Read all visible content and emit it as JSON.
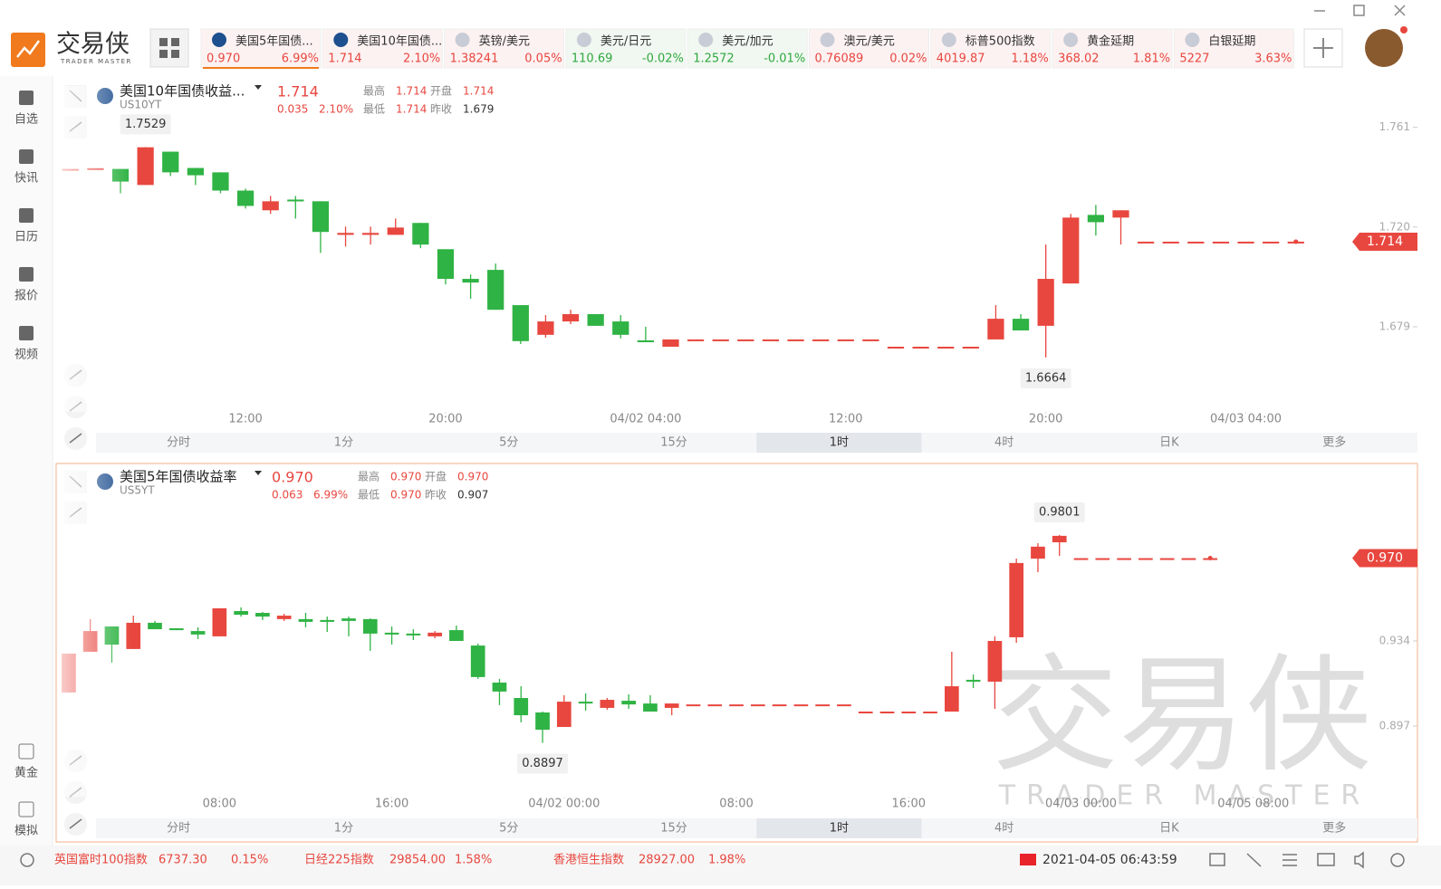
{
  "app": {
    "logo_title": "交易侠",
    "logo_subtitle": "TRADER MASTER"
  },
  "tickers": [
    {
      "name": "美国5年国债...",
      "price": "0.970",
      "change": "6.99%",
      "color": "#e8473f"
    },
    {
      "name": "美国10年国债...",
      "price": "1.714",
      "change": "2.10%",
      "color": "#e8473f"
    },
    {
      "name": "英镑/美元",
      "price": "1.38241",
      "change": "0.05%",
      "color": "#e8473f"
    },
    {
      "name": "美元/日元",
      "price": "110.69",
      "change": "-0.02%",
      "color": "#2fa83f"
    },
    {
      "name": "美元/加元",
      "price": "1.2572",
      "change": "-0.01%",
      "color": "#2fa83f"
    },
    {
      "name": "澳元/美元",
      "price": "0.76089",
      "change": "0.02%",
      "color": "#e8473f"
    },
    {
      "name": "标普500指数",
      "price": "4019.87",
      "change": "1.18%",
      "color": "#e8473f"
    },
    {
      "name": "黄金延期",
      "price": "368.02",
      "change": "1.81%",
      "color": "#e8473f"
    },
    {
      "name": "白银延期",
      "price": "5227",
      "change": "3.63%",
      "color": "#e8473f"
    }
  ],
  "sidebar": {
    "top": [
      "自选",
      "快讯",
      "日历",
      "报价",
      "视频"
    ],
    "bottom": [
      "黄金",
      "模拟"
    ]
  },
  "panels": [
    {
      "name": "美国10年国债收益...",
      "code": "US10YT",
      "price": "1.714",
      "change": "0.035",
      "change_pct": "2.10%",
      "stats": [
        {
          "label": "最高",
          "value": "1.714"
        },
        {
          "label": "开盘",
          "value": "1.714"
        },
        {
          "label": "最低",
          "value": "1.714"
        },
        {
          "label": "昨收",
          "value": "1.679"
        }
      ],
      "timeframes": [
        "分时",
        "1分",
        "5分",
        "15分",
        "1时",
        "4时",
        "日K",
        "更多"
      ],
      "selected_timeframe": 4,
      "chart": {
        "type": "candlestick",
        "up_color": "#e8473f",
        "down_color": "#2fb344",
        "xlim": [
          -0.5,
          51
        ],
        "ylim": [
          1.644,
          1.778
        ],
        "xticks": [
          {
            "value": 7,
            "label": "12:00"
          },
          {
            "value": 15,
            "label": "20:00"
          },
          {
            "value": 23,
            "label": "04/02 04:00"
          },
          {
            "value": 31,
            "label": "12:00"
          },
          {
            "value": 39,
            "label": "20:00"
          },
          {
            "value": 47,
            "label": "04/03 04:00"
          }
        ],
        "yticks": [
          1.761,
          {
            "value": 1.72,
            "label": "1.720"
          },
          1.679
        ],
        "ohlc": [
          [
            1.7439,
            1.7439,
            1.7439,
            1.7439
          ],
          [
            1.7442,
            1.7442,
            1.7442,
            1.7442
          ],
          [
            1.7439,
            1.7439,
            1.7339,
            1.7387
          ],
          [
            1.7373,
            1.7529,
            1.7373,
            1.7528
          ],
          [
            1.751,
            1.751,
            1.741,
            1.7425
          ],
          [
            1.7443,
            1.7443,
            1.7373,
            1.7413
          ],
          [
            1.7425,
            1.7425,
            1.7339,
            1.735
          ],
          [
            1.735,
            1.7358,
            1.7276,
            1.7287
          ],
          [
            1.7269,
            1.7328,
            1.7254,
            1.7306
          ],
          [
            1.7313,
            1.7328,
            1.7235,
            1.7306
          ],
          [
            1.7306,
            1.7306,
            1.7094,
            1.718
          ],
          [
            1.7168,
            1.7202,
            1.712,
            1.7176
          ],
          [
            1.7168,
            1.7202,
            1.7128,
            1.7176
          ],
          [
            1.7168,
            1.7235,
            1.7168,
            1.7198
          ],
          [
            1.7217,
            1.7217,
            1.7113,
            1.7128
          ],
          [
            1.7109,
            1.7109,
            1.6964,
            1.6987
          ],
          [
            1.6987,
            1.7005,
            1.6905,
            1.6972
          ],
          [
            1.7024,
            1.705,
            1.686,
            1.686
          ],
          [
            1.6879,
            1.6879,
            1.6719,
            1.6731
          ],
          [
            1.6757,
            1.6838,
            1.6745,
            1.6812
          ],
          [
            1.6812,
            1.686,
            1.6801,
            1.6842
          ],
          [
            1.6842,
            1.6842,
            1.6794,
            1.6794
          ],
          [
            1.6812,
            1.6838,
            1.6742,
            1.6757
          ],
          [
            1.6734,
            1.679,
            1.6727,
            1.6727
          ],
          [
            1.6708,
            1.6738,
            1.6708,
            1.6738
          ],
          [
            1.6738,
            1.6738,
            1.6738,
            1.6738
          ],
          [
            1.6738,
            1.6738,
            1.6738,
            1.6738
          ],
          [
            1.6738,
            1.6738,
            1.6738,
            1.6738
          ],
          [
            1.6738,
            1.6738,
            1.6738,
            1.6738
          ],
          [
            1.6738,
            1.6738,
            1.6738,
            1.6738
          ],
          [
            1.6738,
            1.6738,
            1.6738,
            1.6738
          ],
          [
            1.6738,
            1.6738,
            1.6738,
            1.6738
          ],
          [
            1.6738,
            1.6738,
            1.6738,
            1.6738
          ],
          [
            1.6708,
            1.6708,
            1.6708,
            1.6708
          ],
          [
            1.6708,
            1.6708,
            1.6708,
            1.6708
          ],
          [
            1.6708,
            1.6708,
            1.6708,
            1.6708
          ],
          [
            1.6708,
            1.6708,
            1.6708,
            1.6708
          ],
          [
            1.6738,
            1.6879,
            1.6738,
            1.6823
          ],
          [
            1.6823,
            1.6842,
            1.6775,
            1.6775
          ],
          [
            1.6794,
            1.7128,
            1.6664,
            1.6987
          ],
          [
            1.6968,
            1.7254,
            1.6968,
            1.7239
          ],
          [
            1.725,
            1.7291,
            1.7165,
            1.722
          ],
          [
            1.7239,
            1.7269,
            1.7128,
            1.7269
          ],
          [
            1.714,
            1.714,
            1.714,
            1.714
          ],
          [
            1.714,
            1.714,
            1.714,
            1.714
          ],
          [
            1.714,
            1.714,
            1.714,
            1.714
          ],
          [
            1.714,
            1.714,
            1.714,
            1.714
          ],
          [
            1.714,
            1.714,
            1.714,
            1.714
          ],
          [
            1.714,
            1.714,
            1.714,
            1.714
          ],
          [
            1.714,
            1.714,
            1.714,
            1.714
          ]
        ]
      }
    },
    {
      "name": "美国5年国债收益率",
      "code": "US5YT",
      "price": "0.970",
      "change": "0.063",
      "change_pct": "6.99%",
      "stats": [
        {
          "label": "最高",
          "value": "0.970"
        },
        {
          "label": "开盘",
          "value": "0.970"
        },
        {
          "label": "最低",
          "value": "0.970"
        },
        {
          "label": "昨收",
          "value": "0.907"
        }
      ],
      "timeframes": [
        "分时",
        "1分",
        "5分",
        "15分",
        "1时",
        "4时",
        "日K",
        "更多"
      ],
      "selected_timeframe": 4,
      "chart": {
        "type": "candlestick",
        "up_color": "#e8473f",
        "down_color": "#2fb344",
        "xlim": [
          -0.5,
          59.3
        ],
        "ylim": [
          0.8663,
          1.008
        ],
        "xticks": [
          {
            "value": 7,
            "label": "08:00"
          },
          {
            "value": 15,
            "label": "16:00"
          },
          {
            "value": 23,
            "label": "04/02 00:00"
          },
          {
            "value": 31,
            "label": "08:00"
          },
          {
            "value": 39,
            "label": "16:00"
          },
          {
            "value": 47,
            "label": "04/03 00:00"
          },
          {
            "value": 55,
            "label": "04/05 08:00"
          }
        ],
        "yticks": [
          0.934,
          0.897
        ],
        "ohlc": [
          [
            0.9116,
            0.9285,
            0.9116,
            0.9285
          ],
          [
            0.9293,
            0.9435,
            0.9293,
            0.9383
          ],
          [
            0.9403,
            0.9403,
            0.9246,
            0.9324
          ],
          [
            0.9305,
            0.945,
            0.9305,
            0.9419
          ],
          [
            0.9419,
            0.9427,
            0.9391,
            0.9391
          ],
          [
            0.9395,
            0.9395,
            0.9387,
            0.9387
          ],
          [
            0.9383,
            0.9399,
            0.9348,
            0.9368
          ],
          [
            0.936,
            0.9482,
            0.936,
            0.9482
          ],
          [
            0.947,
            0.9486,
            0.9446,
            0.9454
          ],
          [
            0.9462,
            0.9466,
            0.9431,
            0.9446
          ],
          [
            0.9435,
            0.9458,
            0.9427,
            0.945
          ],
          [
            0.9435,
            0.9462,
            0.9399,
            0.9423
          ],
          [
            0.9431,
            0.9446,
            0.9379,
            0.9423
          ],
          [
            0.9438,
            0.9446,
            0.936,
            0.9427
          ],
          [
            0.9435,
            0.9438,
            0.9297,
            0.9372
          ],
          [
            0.9376,
            0.9403,
            0.9324,
            0.9368
          ],
          [
            0.9372,
            0.9391,
            0.9344,
            0.9364
          ],
          [
            0.936,
            0.9383,
            0.9352,
            0.9376
          ],
          [
            0.9387,
            0.9407,
            0.934,
            0.934
          ],
          [
            0.932,
            0.9328,
            0.9175,
            0.9183
          ],
          [
            0.9159,
            0.9175,
            0.9061,
            0.912
          ],
          [
            0.9092,
            0.9143,
            0.8986,
            0.9017
          ],
          [
            0.9029,
            0.9033,
            0.8897,
            0.8954
          ],
          [
            0.8966,
            0.9104,
            0.8966,
            0.9076
          ],
          [
            0.9076,
            0.9112,
            0.9037,
            0.9068
          ],
          [
            0.9049,
            0.9092,
            0.9041,
            0.9084
          ],
          [
            0.908,
            0.9108,
            0.9045,
            0.9064
          ],
          [
            0.9068,
            0.9104,
            0.9033,
            0.9033
          ],
          [
            0.9049,
            0.9068,
            0.9017,
            0.9068
          ],
          [
            0.9064,
            0.9064,
            0.9064,
            0.9064
          ],
          [
            0.9064,
            0.9064,
            0.9064,
            0.9064
          ],
          [
            0.9064,
            0.9064,
            0.9064,
            0.9064
          ],
          [
            0.9064,
            0.9064,
            0.9064,
            0.9064
          ],
          [
            0.9064,
            0.9064,
            0.9064,
            0.9064
          ],
          [
            0.9064,
            0.9064,
            0.9064,
            0.9064
          ],
          [
            0.9064,
            0.9064,
            0.9064,
            0.9064
          ],
          [
            0.9064,
            0.9064,
            0.9064,
            0.9064
          ],
          [
            0.9033,
            0.9033,
            0.9033,
            0.9033
          ],
          [
            0.9033,
            0.9033,
            0.9033,
            0.9033
          ],
          [
            0.9033,
            0.9033,
            0.9033,
            0.9033
          ],
          [
            0.9033,
            0.9033,
            0.9033,
            0.9033
          ],
          [
            0.9033,
            0.9293,
            0.9033,
            0.9143
          ],
          [
            0.9171,
            0.9194,
            0.9135,
            0.9163
          ],
          [
            0.9163,
            0.936,
            0.9045,
            0.934
          ],
          [
            0.9356,
            0.9698,
            0.9332,
            0.9679
          ],
          [
            0.9698,
            0.9765,
            0.9639,
            0.975
          ],
          [
            0.9769,
            0.9801,
            0.971,
            0.9797
          ],
          [
            0.97,
            0.97,
            0.97,
            0.97
          ],
          [
            0.97,
            0.97,
            0.97,
            0.97
          ],
          [
            0.97,
            0.97,
            0.97,
            0.97
          ],
          [
            0.97,
            0.97,
            0.97,
            0.97
          ],
          [
            0.97,
            0.97,
            0.97,
            0.97
          ],
          [
            0.97,
            0.97,
            0.97,
            0.97
          ],
          [
            0.97,
            0.97,
            0.97,
            0.97
          ]
        ]
      }
    }
  ],
  "status": {
    "items": [
      {
        "name": "英国富时100指数",
        "price": "6737.30",
        "change": "0.15%"
      },
      {
        "name": "日经225指数",
        "price": "29854.00",
        "change": "1.58%"
      },
      {
        "name": "香港恒生指数",
        "price": "28927.00",
        "change": "1.98%"
      }
    ],
    "datetime": "2021-04-05 06:43:59"
  },
  "watermark": {
    "title": "交易侠",
    "subtitle": "TRADER MASTER"
  }
}
